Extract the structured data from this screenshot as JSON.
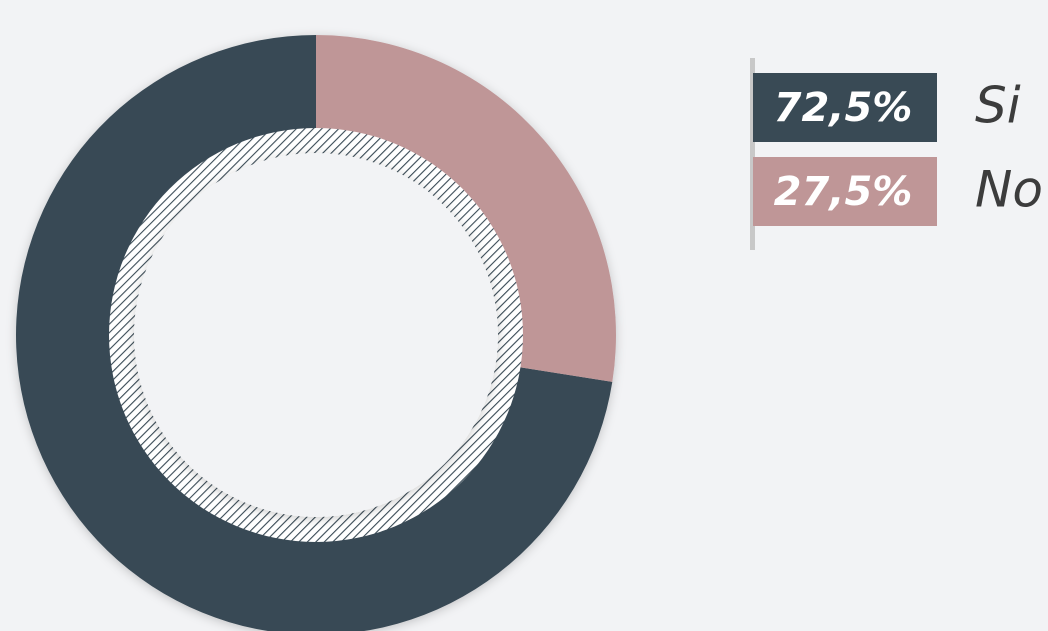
{
  "chart_data": {
    "type": "donut",
    "categories": [
      "Si",
      "No"
    ],
    "values": [
      72.5,
      27.5
    ],
    "value_labels": [
      "72,5%",
      "27,5%"
    ],
    "colors": [
      "#394a55",
      "#bf9697"
    ]
  }
}
